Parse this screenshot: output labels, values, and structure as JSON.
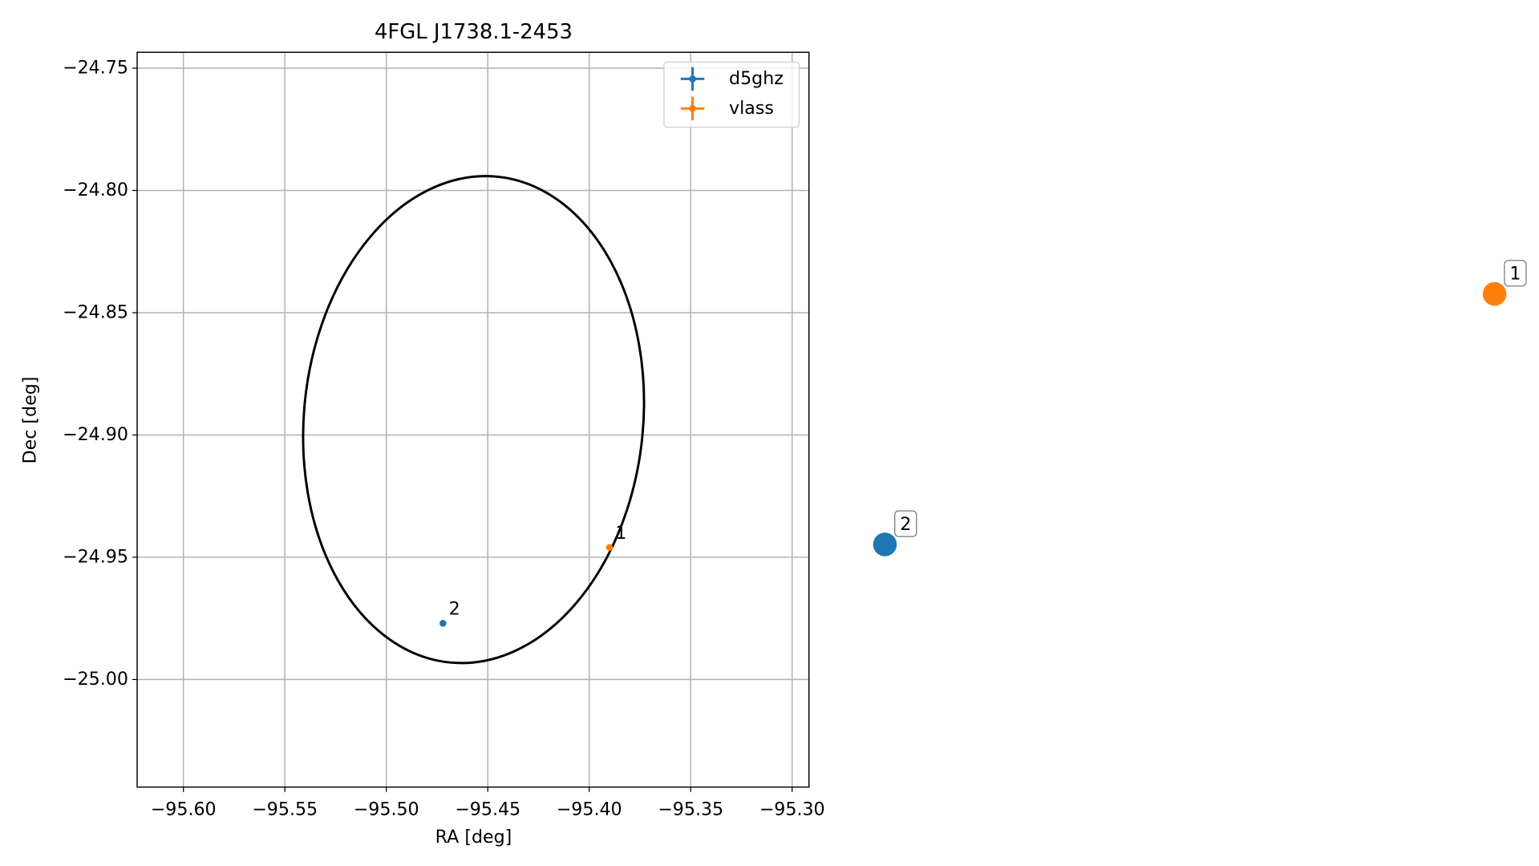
{
  "chart_data": {
    "type": "scatter",
    "title": "4FGL J1738.1-2453",
    "xlabel": "RA [deg]",
    "ylabel": "Dec [deg]",
    "xlim": [
      -95.6228,
      -95.2917
    ],
    "ylim": [
      -25.044,
      -24.7435
    ],
    "xticks": [
      {
        "value": -95.6,
        "label": "−95.60"
      },
      {
        "value": -95.55,
        "label": "−95.55"
      },
      {
        "value": -95.5,
        "label": "−95.50"
      },
      {
        "value": -95.45,
        "label": "−95.45"
      },
      {
        "value": -95.4,
        "label": "−95.40"
      },
      {
        "value": -95.35,
        "label": "−95.35"
      },
      {
        "value": -95.3,
        "label": "−95.30"
      }
    ],
    "yticks": [
      {
        "value": -24.75,
        "label": "−24.75"
      },
      {
        "value": -24.8,
        "label": "−24.80"
      },
      {
        "value": -24.85,
        "label": "−24.85"
      },
      {
        "value": -24.9,
        "label": "−24.90"
      },
      {
        "value": -24.95,
        "label": "−24.95"
      },
      {
        "value": -25.0,
        "label": "−25.00"
      }
    ],
    "grid": true,
    "legend": "upper right",
    "ellipse": {
      "x": -95.457,
      "y": -24.8937,
      "half_width": 0.0836,
      "half_height": 0.0998,
      "angle": 5.5,
      "color": "#000000"
    },
    "series": [
      {
        "name": "d5ghz",
        "color": "#1f77b4",
        "x": [
          -95.4721
        ],
        "values": [
          -24.977
        ],
        "labels": [
          "2"
        ]
      },
      {
        "name": "vlass",
        "color": "#ff7f0e",
        "x": [
          -95.39
        ],
        "values": [
          -24.946
        ],
        "labels": [
          "1"
        ]
      }
    ]
  }
}
